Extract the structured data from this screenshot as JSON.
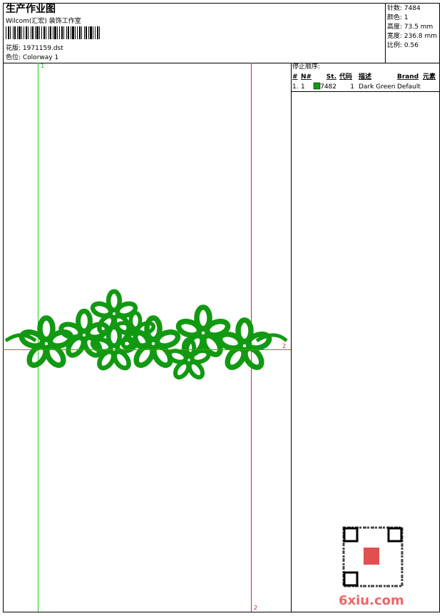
{
  "header": {
    "title": "生产作业图",
    "company": "Wilcom(汇宏) 装饰工作室",
    "design": "花版: 1971159.dst",
    "colorway": "色位: Colorway 1"
  },
  "stats": [
    "针数: 7484",
    "颜色: 1",
    "高度: 73.5 mm",
    "宽度: 236.8 mm",
    "比例: 0.56"
  ],
  "markers": {
    "green": "1",
    "red": "2",
    "horizontal": "2"
  },
  "stop_sequence": {
    "title": "停止顺序:",
    "columns": [
      "#",
      "N#",
      "St.",
      "代码",
      "描述",
      "Brand",
      "元素"
    ],
    "rows": [
      [
        "1.",
        "1",
        "7482",
        "1",
        "Dark Green",
        "Default"
      ]
    ]
  },
  "watermark": "6xiu.com"
}
